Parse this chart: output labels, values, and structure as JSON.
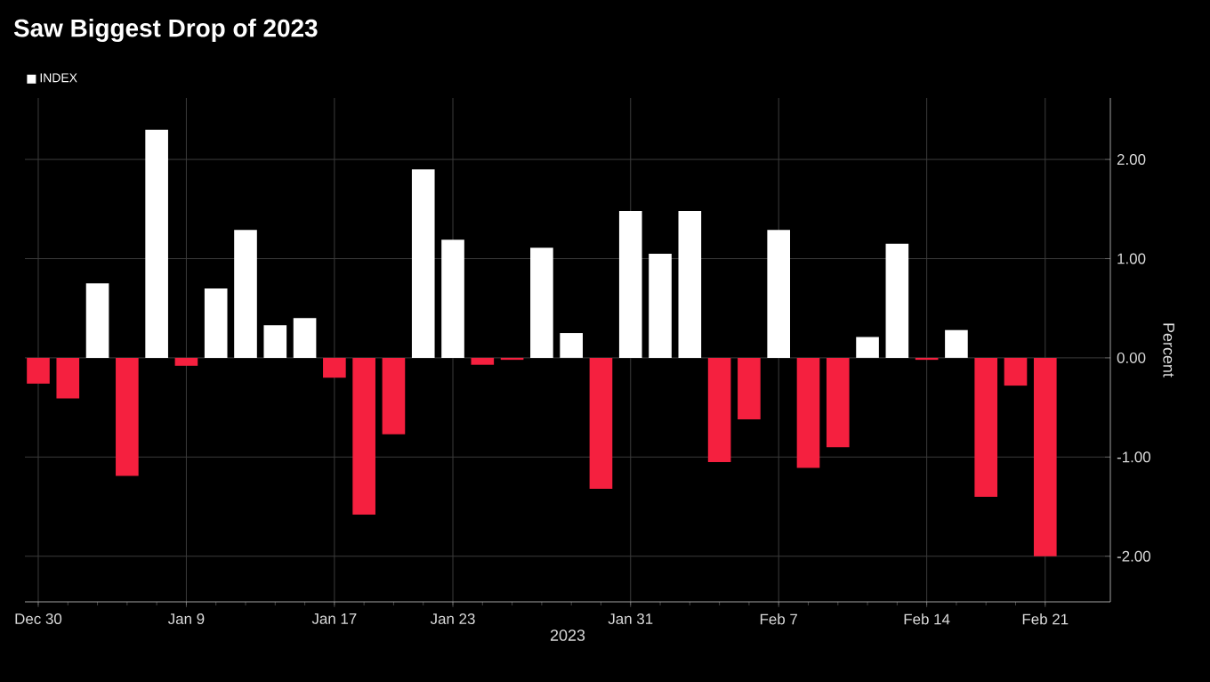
{
  "chart_data": {
    "type": "bar",
    "title": "Saw Biggest Drop of 2023",
    "xlabel": "2023",
    "ylabel": "Percent",
    "categories": [
      "Dec 30",
      null,
      null,
      null,
      null,
      "Jan 9",
      null,
      null,
      null,
      null,
      "Jan 17",
      null,
      null,
      null,
      "Jan 23",
      null,
      null,
      null,
      null,
      null,
      "Jan 31",
      null,
      null,
      null,
      null,
      "Feb 7",
      null,
      null,
      null,
      null,
      "Feb 14",
      null,
      null,
      null,
      "Feb 21"
    ],
    "series": [
      {
        "name": "INDEX",
        "color": "#ffffff",
        "values": [
          -0.26,
          -0.41,
          0.75,
          -1.19,
          2.3,
          -0.08,
          0.7,
          1.29,
          0.33,
          0.4,
          -0.2,
          -1.58,
          -0.77,
          1.9,
          1.19,
          -0.07,
          -0.02,
          1.11,
          0.25,
          -1.32,
          1.48,
          1.05,
          1.48,
          -1.05,
          -0.62,
          1.29,
          -1.11,
          -0.9,
          0.21,
          1.15,
          -0.02,
          0.28,
          -1.4,
          -0.28,
          -2.0
        ],
        "colors": [
          "#f5203f",
          "#f5203f",
          "#ffffff",
          "#f5203f",
          "#ffffff",
          "#f5203f",
          "#ffffff",
          "#ffffff",
          "#ffffff",
          "#ffffff",
          "#f5203f",
          "#f5203f",
          "#f5203f",
          "#ffffff",
          "#ffffff",
          "#f5203f",
          "#f5203f",
          "#ffffff",
          "#ffffff",
          "#f5203f",
          "#ffffff",
          "#ffffff",
          "#ffffff",
          "#f5203f",
          "#f5203f",
          "#ffffff",
          "#f5203f",
          "#f5203f",
          "#ffffff",
          "#ffffff",
          "#f5203f",
          "#ffffff",
          "#f5203f",
          "#f5203f",
          "#f5203f"
        ]
      }
    ],
    "ylim": [
      -2.46,
      2.62
    ],
    "yticks": [
      {
        "value": -2,
        "label": "-2.00"
      },
      {
        "value": -1,
        "label": "-1.00"
      },
      {
        "value": 0,
        "label": "0.00"
      },
      {
        "value": 1,
        "label": "1.00"
      },
      {
        "value": 2,
        "label": "2.00"
      }
    ],
    "grid": true,
    "legend": "top left"
  }
}
